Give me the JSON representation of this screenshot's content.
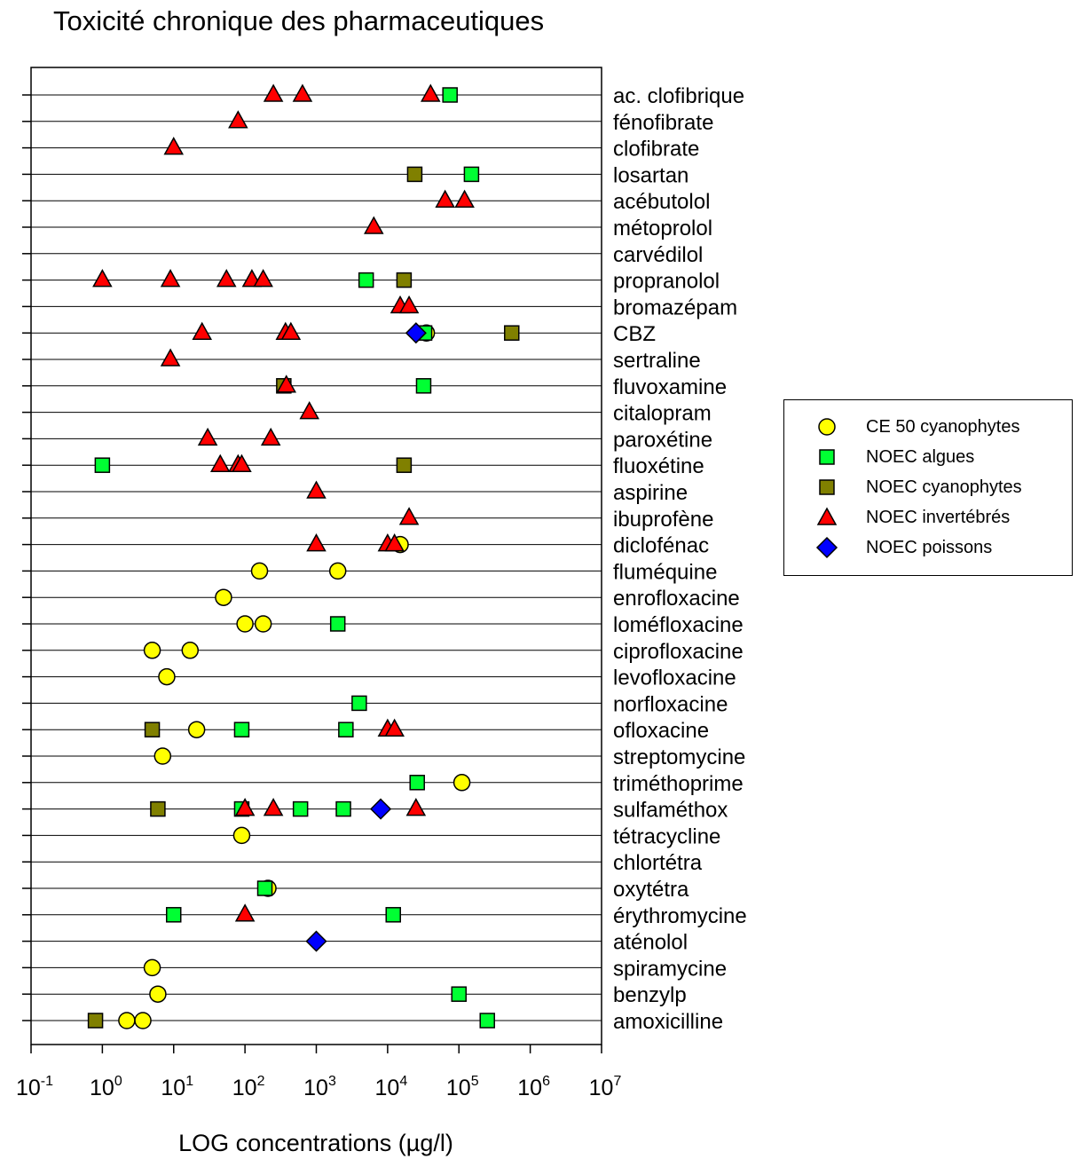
{
  "title": "Toxicité chronique des pharmaceutiques",
  "chart_data": {
    "type": "scatter",
    "title": "Toxicité chronique des pharmaceutiques",
    "xlabel": "LOG concentrations (µg/l)",
    "ylabel": "",
    "x_scale": "log",
    "xlim": [
      0.1,
      10000000
    ],
    "x_ticks": [
      {
        "value": 0.1,
        "base": "10",
        "exp": "-1"
      },
      {
        "value": 1,
        "base": "10",
        "exp": "0"
      },
      {
        "value": 10,
        "base": "10",
        "exp": "1"
      },
      {
        "value": 100,
        "base": "10",
        "exp": "2"
      },
      {
        "value": 1000,
        "base": "10",
        "exp": "3"
      },
      {
        "value": 10000,
        "base": "10",
        "exp": "4"
      },
      {
        "value": 100000,
        "base": "10",
        "exp": "5"
      },
      {
        "value": 1000000,
        "base": "10",
        "exp": "6"
      },
      {
        "value": 10000000,
        "base": "10",
        "exp": "7"
      }
    ],
    "grid": "horizontal",
    "legend_position": "right",
    "categories": [
      "ac. clofibrique",
      "fénofibrate",
      "clofibrate",
      "losartan",
      "acébutolol",
      "métoprolol",
      "carvédilol",
      "propranolol",
      "bromazépam",
      "CBZ",
      "sertraline",
      "fluvoxamine",
      "citalopram",
      "paroxétine",
      "fluoxétine",
      "aspirine",
      "ibuprofène",
      "diclofénac",
      "fluméquine",
      "enrofloxacine",
      "loméfloxacine",
      "ciprofloxacine",
      "levofloxacine",
      "norfloxacine",
      "ofloxacine",
      "streptomycine",
      "triméthoprime",
      "sulfaméthox",
      "tétracycline",
      "chlortétra",
      "oxytétra",
      "érythromycine",
      "aténolol",
      "spiramycine",
      "benzylp",
      "amoxicilline"
    ],
    "series": [
      {
        "name": "CE 50 cyanophytes",
        "marker": "circle",
        "color": "#ffff00",
        "points": [
          {
            "category": "CBZ",
            "x": 35000
          },
          {
            "category": "diclofénac",
            "x": 15000
          },
          {
            "category": "fluméquine",
            "x": 160
          },
          {
            "category": "fluméquine",
            "x": 2000
          },
          {
            "category": "enrofloxacine",
            "x": 50
          },
          {
            "category": "loméfloxacine",
            "x": 100
          },
          {
            "category": "loméfloxacine",
            "x": 180
          },
          {
            "category": "ciprofloxacine",
            "x": 5
          },
          {
            "category": "ciprofloxacine",
            "x": 17
          },
          {
            "category": "levofloxacine",
            "x": 8
          },
          {
            "category": "ofloxacine",
            "x": 21
          },
          {
            "category": "streptomycine",
            "x": 7
          },
          {
            "category": "triméthoprime",
            "x": 110000
          },
          {
            "category": "tétracycline",
            "x": 90
          },
          {
            "category": "oxytétra",
            "x": 210
          },
          {
            "category": "spiramycine",
            "x": 5
          },
          {
            "category": "benzylp",
            "x": 6
          },
          {
            "category": "amoxicilline",
            "x": 2.2
          },
          {
            "category": "amoxicilline",
            "x": 3.7
          }
        ]
      },
      {
        "name": "NOEC algues",
        "marker": "square",
        "color": "#00ff33",
        "points": [
          {
            "category": "ac. clofibrique",
            "x": 75000
          },
          {
            "category": "losartan",
            "x": 150000
          },
          {
            "category": "propranolol",
            "x": 5000
          },
          {
            "category": "CBZ",
            "x": 33000
          },
          {
            "category": "fluvoxamine",
            "x": 32000
          },
          {
            "category": "fluoxétine",
            "x": 1
          },
          {
            "category": "loméfloxacine",
            "x": 2000
          },
          {
            "category": "norfloxacine",
            "x": 4000
          },
          {
            "category": "ofloxacine",
            "x": 90
          },
          {
            "category": "ofloxacine",
            "x": 2600
          },
          {
            "category": "triméthoprime",
            "x": 26000
          },
          {
            "category": "sulfaméthox",
            "x": 90
          },
          {
            "category": "sulfaméthox",
            "x": 600
          },
          {
            "category": "sulfaméthox",
            "x": 2400
          },
          {
            "category": "oxytétra",
            "x": 190
          },
          {
            "category": "érythromycine",
            "x": 10
          },
          {
            "category": "érythromycine",
            "x": 12000
          },
          {
            "category": "benzylp",
            "x": 100000
          },
          {
            "category": "amoxicilline",
            "x": 250000
          }
        ]
      },
      {
        "name": "NOEC cyanophytes",
        "marker": "square",
        "color": "#808000",
        "points": [
          {
            "category": "losartan",
            "x": 24000
          },
          {
            "category": "propranolol",
            "x": 17000
          },
          {
            "category": "CBZ",
            "x": 550000
          },
          {
            "category": "fluvoxamine",
            "x": 350
          },
          {
            "category": "fluoxétine",
            "x": 17000
          },
          {
            "category": "ofloxacine",
            "x": 5
          },
          {
            "category": "sulfaméthox",
            "x": 6
          },
          {
            "category": "amoxicilline",
            "x": 0.8
          }
        ]
      },
      {
        "name": "NOEC invertébrés",
        "marker": "triangle",
        "color": "#ff0000",
        "points": [
          {
            "category": "ac. clofibrique",
            "x": 250
          },
          {
            "category": "ac. clofibrique",
            "x": 640
          },
          {
            "category": "ac. clofibrique",
            "x": 40000
          },
          {
            "category": "fénofibrate",
            "x": 80
          },
          {
            "category": "clofibrate",
            "x": 10
          },
          {
            "category": "acébutolol",
            "x": 64000
          },
          {
            "category": "acébutolol",
            "x": 120000
          },
          {
            "category": "métoprolol",
            "x": 6400
          },
          {
            "category": "propranolol",
            "x": 1
          },
          {
            "category": "propranolol",
            "x": 9
          },
          {
            "category": "propranolol",
            "x": 55
          },
          {
            "category": "propranolol",
            "x": 125
          },
          {
            "category": "propranolol",
            "x": 180
          },
          {
            "category": "bromazépam",
            "x": 15000
          },
          {
            "category": "bromazépam",
            "x": 20000
          },
          {
            "category": "CBZ",
            "x": 25
          },
          {
            "category": "CBZ",
            "x": 370
          },
          {
            "category": "CBZ",
            "x": 440
          },
          {
            "category": "sertraline",
            "x": 9
          },
          {
            "category": "fluvoxamine",
            "x": 380
          },
          {
            "category": "citalopram",
            "x": 800
          },
          {
            "category": "paroxétine",
            "x": 30
          },
          {
            "category": "paroxétine",
            "x": 230
          },
          {
            "category": "fluoxétine",
            "x": 45
          },
          {
            "category": "fluoxétine",
            "x": 80
          },
          {
            "category": "fluoxétine",
            "x": 90
          },
          {
            "category": "aspirine",
            "x": 1000
          },
          {
            "category": "ibuprofène",
            "x": 20000
          },
          {
            "category": "diclofénac",
            "x": 1000
          },
          {
            "category": "diclofénac",
            "x": 10000
          },
          {
            "category": "diclofénac",
            "x": 12500
          },
          {
            "category": "ofloxacine",
            "x": 10000
          },
          {
            "category": "ofloxacine",
            "x": 12500
          },
          {
            "category": "sulfaméthox",
            "x": 100
          },
          {
            "category": "sulfaméthox",
            "x": 250
          },
          {
            "category": "sulfaméthox",
            "x": 25000
          },
          {
            "category": "érythromycine",
            "x": 100
          }
        ]
      },
      {
        "name": "NOEC poissons",
        "marker": "diamond",
        "color": "#0000ff",
        "points": [
          {
            "category": "CBZ",
            "x": 25000
          },
          {
            "category": "sulfaméthox",
            "x": 8000
          },
          {
            "category": "aténolol",
            "x": 1000
          }
        ]
      }
    ]
  }
}
